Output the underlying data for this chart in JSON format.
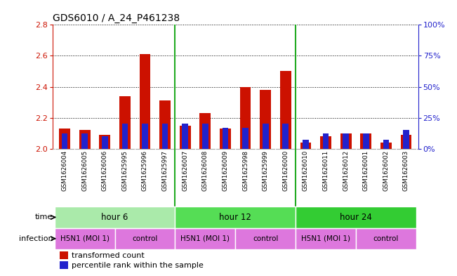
{
  "title": "GDS6010 / A_24_P461238",
  "samples": [
    "GSM1626004",
    "GSM1626005",
    "GSM1626006",
    "GSM1625995",
    "GSM1625996",
    "GSM1625997",
    "GSM1626007",
    "GSM1626008",
    "GSM1626009",
    "GSM1625998",
    "GSM1625999",
    "GSM1626000",
    "GSM1626010",
    "GSM1626011",
    "GSM1626012",
    "GSM1626001",
    "GSM1626002",
    "GSM1626003"
  ],
  "red_values": [
    2.13,
    2.12,
    2.09,
    2.34,
    2.61,
    2.31,
    2.15,
    2.23,
    2.13,
    2.4,
    2.38,
    2.5,
    2.04,
    2.08,
    2.1,
    2.1,
    2.04,
    2.09
  ],
  "blue_percentiles": [
    12,
    12,
    10,
    20,
    20,
    20,
    20,
    20,
    17,
    17,
    20,
    20,
    7,
    12,
    12,
    12,
    7,
    15
  ],
  "baseline": 2.0,
  "ylim_left": [
    2.0,
    2.8
  ],
  "yticks_left": [
    2.0,
    2.2,
    2.4,
    2.6,
    2.8
  ],
  "ylim_right": [
    0,
    100
  ],
  "yticks_right": [
    0,
    25,
    50,
    75,
    100
  ],
  "yticklabels_right": [
    "0%",
    "25%",
    "50%",
    "75%",
    "100%"
  ],
  "bar_width": 0.55,
  "red_color": "#cc1100",
  "blue_color": "#2222cc",
  "time_groups": [
    {
      "label": "hour 6",
      "start": 0,
      "end": 5,
      "color": "#aaeaaa"
    },
    {
      "label": "hour 12",
      "start": 6,
      "end": 11,
      "color": "#55dd55"
    },
    {
      "label": "hour 24",
      "start": 12,
      "end": 17,
      "color": "#33cc33"
    }
  ],
  "infection_spans": [
    {
      "label": "H5N1 (MOI 1)",
      "start": 0,
      "end": 2
    },
    {
      "label": "control",
      "start": 3,
      "end": 5
    },
    {
      "label": "H5N1 (MOI 1)",
      "start": 6,
      "end": 8
    },
    {
      "label": "control",
      "start": 9,
      "end": 11
    },
    {
      "label": "H5N1 (MOI 1)",
      "start": 12,
      "end": 14
    },
    {
      "label": "control",
      "start": 15,
      "end": 17
    }
  ],
  "infection_color": "#dd77dd",
  "sample_bg": "#d0d0d0",
  "dividers": [
    5.5,
    11.5
  ],
  "n_samples": 18
}
